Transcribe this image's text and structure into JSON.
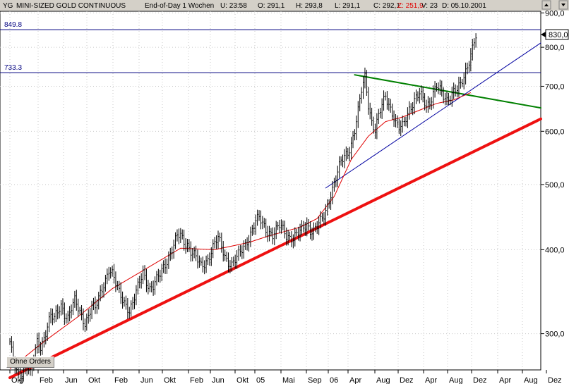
{
  "header": {
    "symbol": "YG",
    "name": "MINI-SIZED GOLD CONTINUOUS",
    "period": "End-of-Day 1 Wochen",
    "u": "U: 23:58",
    "o": "O: 291,1",
    "h": "H: 293,8",
    "l": "L: 291,1",
    "c": "C: 292,1",
    "z": "Z: 251,9",
    "v": "V: 23",
    "d": "D: 05.10.2001"
  },
  "current_price_label": "830,0",
  "orders_button": "Ohne Orders",
  "chart_data": {
    "type": "line",
    "series": [
      {
        "style": "ohlc-bars",
        "color": "#000000",
        "weeks": [
          [
            0,
            292
          ],
          [
            2,
            272
          ],
          [
            4,
            262
          ],
          [
            6,
            258
          ],
          [
            8,
            266
          ],
          [
            10,
            270
          ],
          [
            12,
            262
          ],
          [
            14,
            275
          ],
          [
            16,
            290
          ],
          [
            18,
            286
          ],
          [
            20,
            296
          ],
          [
            22,
            310
          ],
          [
            24,
            320
          ],
          [
            26,
            315
          ],
          [
            28,
            322
          ],
          [
            30,
            330
          ],
          [
            32,
            322
          ],
          [
            34,
            318
          ],
          [
            36,
            328
          ],
          [
            38,
            335
          ],
          [
            40,
            326
          ],
          [
            42,
            318
          ],
          [
            44,
            312
          ],
          [
            46,
            320
          ],
          [
            48,
            330
          ],
          [
            50,
            326
          ],
          [
            52,
            338
          ],
          [
            54,
            350
          ],
          [
            56,
            362
          ],
          [
            58,
            375
          ],
          [
            60,
            368
          ],
          [
            62,
            355
          ],
          [
            64,
            345
          ],
          [
            66,
            338
          ],
          [
            68,
            332
          ],
          [
            70,
            325
          ],
          [
            72,
            332
          ],
          [
            74,
            345
          ],
          [
            76,
            358
          ],
          [
            78,
            372
          ],
          [
            80,
            360
          ],
          [
            82,
            350
          ],
          [
            84,
            352
          ],
          [
            86,
            360
          ],
          [
            88,
            368
          ],
          [
            90,
            378
          ],
          [
            92,
            386
          ],
          [
            94,
            395
          ],
          [
            96,
            405
          ],
          [
            98,
            418
          ],
          [
            100,
            420
          ],
          [
            102,
            412
          ],
          [
            104,
            408
          ],
          [
            106,
            398
          ],
          [
            108,
            392
          ],
          [
            110,
            385
          ],
          [
            112,
            378
          ],
          [
            114,
            382
          ],
          [
            116,
            388
          ],
          [
            118,
            398
          ],
          [
            120,
            408
          ],
          [
            122,
            415
          ],
          [
            124,
            404
          ],
          [
            126,
            392
          ],
          [
            128,
            384
          ],
          [
            130,
            380
          ],
          [
            132,
            385
          ],
          [
            134,
            392
          ],
          [
            136,
            400
          ],
          [
            138,
            408
          ],
          [
            140,
            418
          ],
          [
            142,
            428
          ],
          [
            144,
            440
          ],
          [
            146,
            445
          ],
          [
            148,
            438
          ],
          [
            150,
            430
          ],
          [
            152,
            425
          ],
          [
            154,
            420
          ],
          [
            156,
            426
          ],
          [
            158,
            434
          ],
          [
            160,
            430
          ],
          [
            162,
            422
          ],
          [
            164,
            418
          ],
          [
            166,
            415
          ],
          [
            168,
            420
          ],
          [
            170,
            425
          ],
          [
            172,
            432
          ],
          [
            174,
            438
          ],
          [
            176,
            428
          ],
          [
            178,
            426
          ],
          [
            180,
            432
          ],
          [
            182,
            440
          ],
          [
            184,
            450
          ],
          [
            186,
            466
          ],
          [
            188,
            485
          ],
          [
            190,
            500
          ],
          [
            192,
            520
          ],
          [
            194,
            540
          ],
          [
            196,
            552
          ],
          [
            198,
            560
          ],
          [
            200,
            575
          ],
          [
            202,
            600
          ],
          [
            204,
            640
          ],
          [
            206,
            690
          ],
          [
            208,
            725
          ],
          [
            210,
            660
          ],
          [
            212,
            620
          ],
          [
            214,
            600
          ],
          [
            216,
            630
          ],
          [
            218,
            655
          ],
          [
            220,
            680
          ],
          [
            222,
            660
          ],
          [
            224,
            640
          ],
          [
            226,
            615
          ],
          [
            228,
            605
          ],
          [
            230,
            610
          ],
          [
            232,
            630
          ],
          [
            234,
            650
          ],
          [
            236,
            660
          ],
          [
            238,
            672
          ],
          [
            240,
            680
          ],
          [
            242,
            670
          ],
          [
            244,
            655
          ],
          [
            246,
            665
          ],
          [
            248,
            685
          ],
          [
            250,
            700
          ],
          [
            252,
            688
          ],
          [
            254,
            675
          ],
          [
            256,
            668
          ],
          [
            258,
            680
          ],
          [
            260,
            690
          ],
          [
            262,
            692
          ],
          [
            264,
            700
          ],
          [
            266,
            720
          ],
          [
            268,
            750
          ],
          [
            270,
            785
          ],
          [
            272,
            820
          ],
          [
            274,
            845
          ]
        ]
      },
      {
        "name": "",
        "style": "moving-average",
        "color": "#e00000",
        "weeks": [
          [
            0,
            266
          ],
          [
            20,
            292
          ],
          [
            40,
            318
          ],
          [
            60,
            350
          ],
          [
            80,
            375
          ],
          [
            100,
            402
          ],
          [
            120,
            400
          ],
          [
            140,
            410
          ],
          [
            150,
            418
          ],
          [
            160,
            425
          ],
          [
            170,
            432
          ],
          [
            180,
            445
          ],
          [
            190,
            480
          ],
          [
            200,
            545
          ],
          [
            210,
            590
          ],
          [
            220,
            620
          ],
          [
            230,
            630
          ],
          [
            240,
            645
          ],
          [
            250,
            660
          ],
          [
            260,
            668
          ],
          [
            270,
            685
          ]
        ]
      }
    ],
    "lines": [
      {
        "id": "support-red",
        "color": "#ee1111",
        "from": {
          "week": 0,
          "value": 258
        },
        "to": {
          "week": 311,
          "value": 626
        }
      },
      {
        "id": "resistance-green",
        "color": "#008000",
        "from": {
          "week": 202,
          "value": 728
        },
        "to": {
          "week": 311,
          "value": 650
        }
      },
      {
        "id": "channel-blue",
        "color": "#0000a0",
        "from": {
          "week": 185,
          "value": 494
        },
        "to": {
          "week": 311,
          "value": 812
        }
      },
      {
        "id": "level-849",
        "color": "#000080",
        "level": 849.8,
        "label": "849.8"
      },
      {
        "id": "level-733",
        "color": "#000080",
        "level": 733.3,
        "label": "733.3"
      }
    ],
    "x_ticks": [
      "Okt",
      "Feb",
      "Jun",
      "Okt",
      "Feb",
      "Jun",
      "Okt",
      "Feb",
      "Jun",
      "Okt",
      "05",
      "Mai",
      "Sep",
      "06",
      "Apr",
      "Aug",
      "Dez",
      "Apr",
      "Aug",
      "Dez",
      "Apr",
      "Aug",
      "Dez"
    ],
    "y_ticks": [
      300,
      400,
      500,
      600,
      700,
      800,
      900
    ],
    "y_tick_labels": [
      "300,0",
      "400,0",
      "500,0",
      "600,0",
      "700,0",
      "800,0",
      "900,0"
    ],
    "y_scale": "log",
    "ylim": [
      265,
      905
    ],
    "grid": true,
    "xlabel": "",
    "ylabel": ""
  }
}
